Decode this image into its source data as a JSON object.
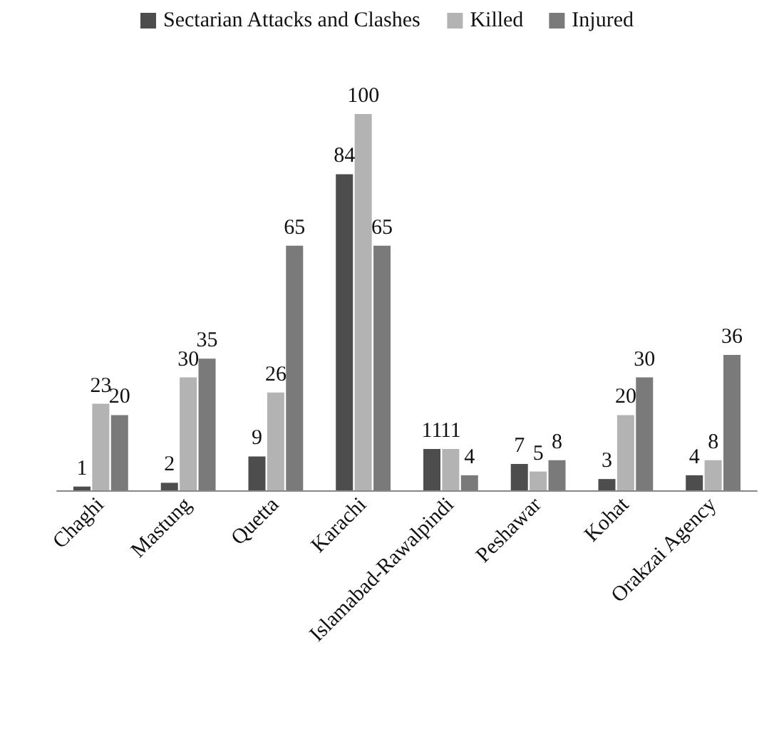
{
  "chart_data": {
    "type": "bar",
    "categories": [
      "Chaghi",
      "Mastung",
      "Quetta",
      "Karachi",
      "Islamabad-Rawalpindi",
      "Peshawar",
      "Kohat",
      "Orakzai Agency"
    ],
    "series": [
      {
        "name": "Sectarian Attacks and Clashes",
        "color": "#4d4d4d",
        "values": [
          1,
          2,
          9,
          84,
          11,
          7,
          3,
          4
        ]
      },
      {
        "name": "Killed",
        "color": "#b3b3b3",
        "values": [
          23,
          30,
          26,
          100,
          11,
          5,
          20,
          8
        ]
      },
      {
        "name": "Injured",
        "color": "#7a7a7a",
        "values": [
          20,
          35,
          65,
          65,
          4,
          8,
          30,
          36
        ]
      }
    ],
    "data_labels": true,
    "legend": "top"
  }
}
